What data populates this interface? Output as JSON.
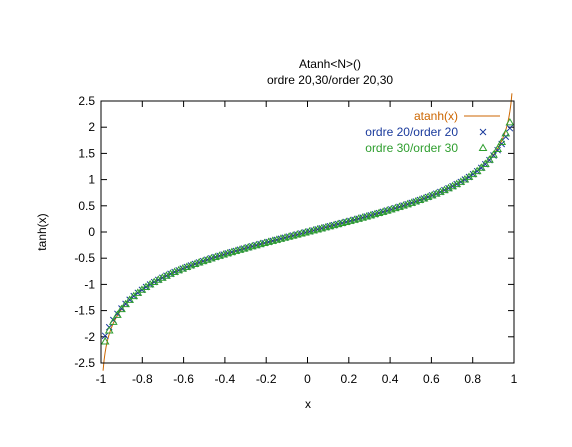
{
  "chart_data": {
    "type": "line",
    "title": "Atanh<N>()",
    "subtitle": "ordre 20,30/order 20,30",
    "xlabel": "x",
    "ylabel": "tanh(x)",
    "xlim": [
      -1,
      1
    ],
    "ylim": [
      -2.5,
      2.5
    ],
    "xticks": [
      "-1",
      "-0.8",
      "-0.6",
      "-0.4",
      "-0.2",
      "0",
      "0.2",
      "0.4",
      "0.6",
      "0.8",
      "1"
    ],
    "yticks": [
      "-2.5",
      "-2",
      "-1.5",
      "-1",
      "-0.5",
      "0",
      "0.5",
      "1",
      "1.5",
      "2",
      "2.5"
    ],
    "grid": false,
    "legend_position": "top-right",
    "series": [
      {
        "name": "atanh(x)",
        "style": "line",
        "color": "#cc6600",
        "function": "atanh",
        "x_range": [
          -0.99,
          0.99
        ]
      },
      {
        "name": "ordre 20/order 20",
        "style": "marker",
        "marker": "x",
        "color": "#1a3a9c",
        "function": "atanh taylor order 20",
        "x_range": [
          -0.98,
          0.98
        ]
      },
      {
        "name": "ordre 30/order 30",
        "style": "marker",
        "marker": "triangle",
        "color": "#2e9e2e",
        "function": "atanh taylor order 30",
        "x_range": [
          -0.98,
          0.98
        ]
      }
    ]
  }
}
